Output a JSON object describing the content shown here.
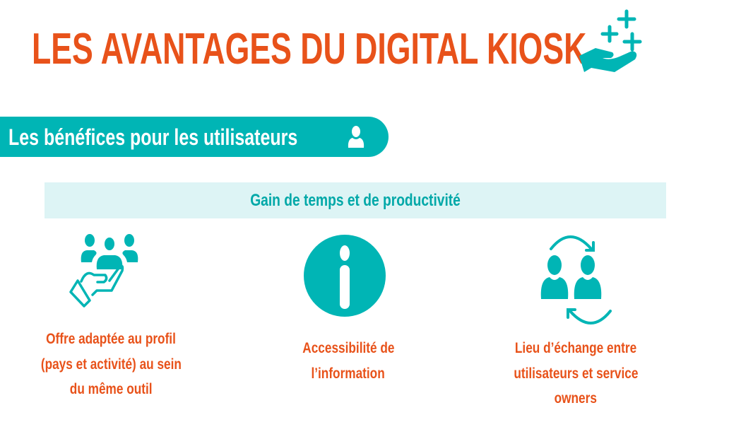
{
  "colors": {
    "accent": "#E8521A",
    "teal": "#00B5B5",
    "band": "#DDF4F5"
  },
  "title": "LES AVANTAGES DU DIGITAL KIOSK",
  "title_icon": "hand-with-plus-icon",
  "banner": {
    "label": "Les bénéfices pour les utilisateurs",
    "icon": "user-icon"
  },
  "band": {
    "label": "Gain de temps et de productivité"
  },
  "benefits": [
    {
      "icon": "hand-holding-people-icon",
      "lines": [
        "Offre adaptée au profil",
        "(pays et activité) au sein",
        "du même outil"
      ]
    },
    {
      "icon": "info-icon",
      "lines": [
        "Accessibilité de",
        "l’information"
      ]
    },
    {
      "icon": "user-exchange-icon",
      "lines": [
        "Lieu d’échange entre",
        "utilisateurs et service",
        "owners"
      ]
    }
  ]
}
